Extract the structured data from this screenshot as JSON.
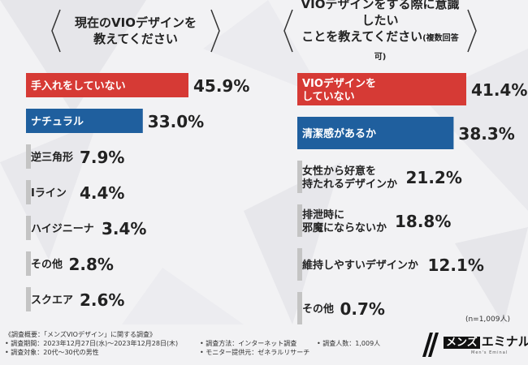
{
  "left_question": "現在のVIOデザインを\n教えてください",
  "right_question_main": "VIOデザインをする際に意識したい\nことを教えてください",
  "right_question_sub": "(複数回答可)",
  "sample_note": "(n=1,009人)",
  "footer": {
    "outline": "《調査概要：「メンズVIOデザイン」に関する調査》",
    "period": "• 調査期間：2023年12月27日(水)～2023年12月28日(木)",
    "method": "• 調査方法：インターネット調査",
    "count": "• 調査人数：1,009人",
    "target": "• 調査対象：20代～30代の男性",
    "monitor": "• モニター提供元：ゼネラルリサーチ"
  },
  "logo": {
    "box_text": "メンズ",
    "name": "エミナル",
    "tagline": "Men's Eminal"
  },
  "colors": {
    "red": "#d63a35",
    "blue": "#1f5f9e",
    "gray": "#c4c4c4"
  },
  "chart_data": [
    {
      "type": "bar",
      "orientation": "horizontal",
      "categories": [
        "手入れをしていない",
        "ナチュラル",
        "逆三角形",
        "Iライン",
        "ハイジニーナ",
        "その他",
        "スクエア"
      ],
      "values": [
        45.9,
        33.0,
        7.9,
        4.4,
        3.4,
        2.8,
        2.6
      ],
      "value_labels": [
        "45.9%",
        "33.0%",
        "7.9%",
        "4.4%",
        "3.4%",
        "2.8%",
        "2.6%"
      ],
      "bar_colors": [
        "red",
        "blue",
        "gray",
        "gray",
        "gray",
        "gray",
        "gray"
      ],
      "xlim": [
        0,
        45.9
      ]
    },
    {
      "type": "bar",
      "orientation": "horizontal",
      "categories": [
        "VIOデザインを\nしていない",
        "清潔感があるか",
        "女性から好意を\n持たれるデザインか",
        "排泄時に\n邪魔にならないか",
        "維持しやすいデザインか",
        "その他"
      ],
      "values": [
        41.4,
        38.3,
        21.2,
        18.8,
        12.1,
        0.7
      ],
      "value_labels": [
        "41.4%",
        "38.3%",
        "21.2%",
        "18.8%",
        "12.1%",
        "0.7%"
      ],
      "bar_colors": [
        "red",
        "blue",
        "gray",
        "gray",
        "gray",
        "gray"
      ],
      "xlim": [
        0,
        41.4
      ]
    }
  ]
}
